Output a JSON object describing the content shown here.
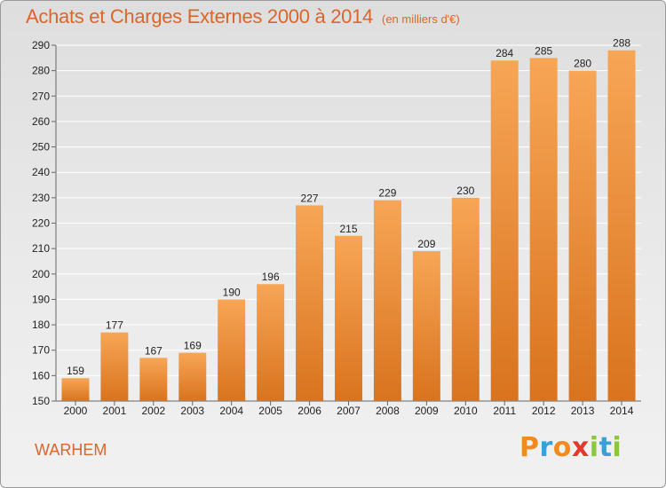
{
  "title": "Achats et Charges Externes 2000 à 2014",
  "subtitle": "(en milliers d'€)",
  "commune": "WARHEM",
  "brand": {
    "text": "Proxiti",
    "letters": [
      {
        "ch": "P",
        "color": "#f08c1e"
      },
      {
        "ch": "r",
        "color": "#3aa0d8"
      },
      {
        "ch": "o",
        "color": "#f08c1e"
      },
      {
        "ch": "x",
        "color": "#e23a2c"
      },
      {
        "ch": "i",
        "color": "#8cc63f"
      },
      {
        "ch": "t",
        "color": "#3aa0d8"
      },
      {
        "ch": "i",
        "color": "#8cc63f"
      }
    ]
  },
  "colors": {
    "text_accent": "#d9662a",
    "bar_light": "#f7a656",
    "bar_dark": "#d9731e",
    "grid": "#ffffff"
  },
  "chart_data": {
    "type": "bar",
    "categories": [
      "2000",
      "2001",
      "2002",
      "2003",
      "2004",
      "2005",
      "2006",
      "2007",
      "2008",
      "2009",
      "2010",
      "2011",
      "2012",
      "2013",
      "2014"
    ],
    "values": [
      159,
      177,
      167,
      169,
      190,
      196,
      227,
      215,
      229,
      209,
      230,
      284,
      285,
      280,
      288
    ],
    "ylim": [
      150,
      290
    ],
    "yticks": [
      150,
      160,
      170,
      180,
      190,
      200,
      210,
      220,
      230,
      240,
      250,
      260,
      270,
      280,
      290
    ],
    "grid": true,
    "xlabel": "",
    "ylabel": ""
  }
}
